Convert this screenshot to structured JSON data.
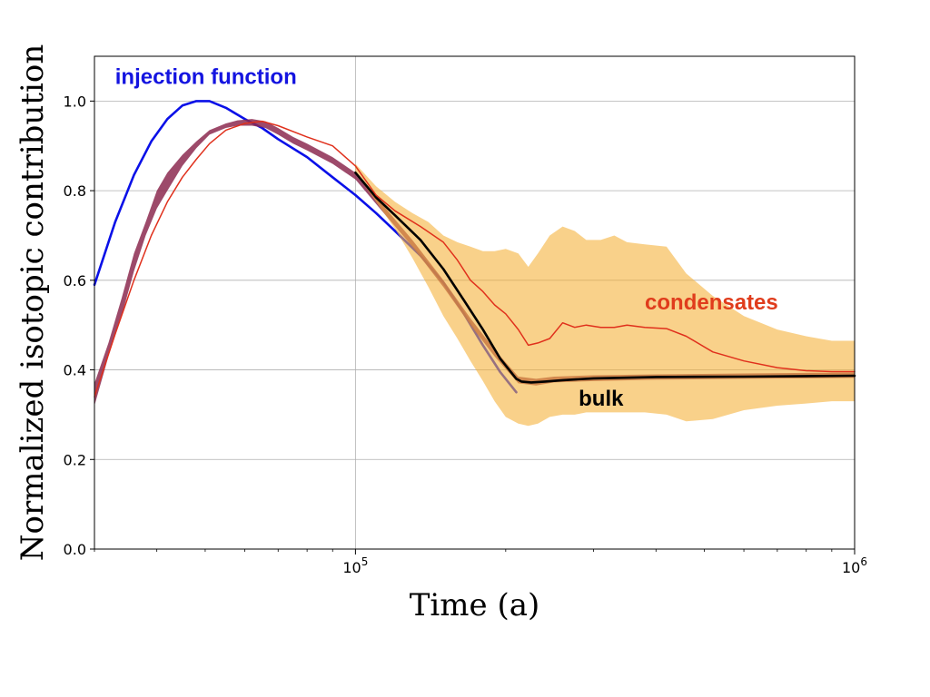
{
  "chart_data": {
    "type": "line",
    "title": "",
    "xlabel": "Time (a)",
    "ylabel": "Normalized isotopic contribution",
    "xscale": "log",
    "xlim": [
      30000,
      1000000
    ],
    "ylim": [
      0,
      1.1
    ],
    "grid": true,
    "yticks": [
      {
        "value": 0.0,
        "label": "0.0"
      },
      {
        "value": 0.2,
        "label": "0.2"
      },
      {
        "value": 0.4,
        "label": "0.4"
      },
      {
        "value": 0.6,
        "label": "0.6"
      },
      {
        "value": 0.8,
        "label": "0.8"
      },
      {
        "value": 1.0,
        "label": "1.0"
      }
    ],
    "xticks": [
      {
        "value": 100000,
        "base": "10",
        "exp": "5"
      },
      {
        "value": 1000000,
        "base": "10",
        "exp": "6"
      }
    ],
    "annotations": [
      {
        "text": "injection function",
        "color": "#1414e0",
        "x": 33000,
        "y": 1.038
      },
      {
        "text": "condensates",
        "color": "#e03c1c",
        "x": 380000,
        "y": 0.535
      },
      {
        "text": "bulk",
        "color": "#000000",
        "x": 280000,
        "y": 0.32
      }
    ],
    "series": [
      {
        "name": "injection function",
        "type": "line",
        "color": "#0a10e8",
        "x": [
          30000,
          33000,
          36000,
          39000,
          42000,
          45000,
          48000,
          51000,
          55000,
          60000,
          65000,
          70000,
          80000,
          90000,
          100000,
          110000,
          120000,
          135000,
          150000,
          165000,
          180000,
          195000,
          210000
        ],
        "y": [
          0.59,
          0.73,
          0.835,
          0.91,
          0.96,
          0.99,
          1.0,
          1.0,
          0.985,
          0.96,
          0.94,
          0.915,
          0.875,
          0.83,
          0.79,
          0.75,
          0.71,
          0.655,
          0.595,
          0.525,
          0.455,
          0.395,
          0.35
        ]
      },
      {
        "name": "bulk band",
        "type": "band",
        "fill": "#8c2a50",
        "opacity": 0.85,
        "x": [
          30000,
          32000,
          34000,
          36000,
          38000,
          40000,
          42000,
          45000,
          48000,
          51000,
          55000,
          58000,
          62000,
          66000,
          70000,
          75000,
          80000,
          90000,
          100000,
          115000,
          130000,
          150000,
          170000,
          190000,
          212000,
          230000,
          250000,
          300000,
          400000,
          600000,
          1000000
        ],
        "lower": [
          0.32,
          0.43,
          0.52,
          0.62,
          0.7,
          0.76,
          0.8,
          0.855,
          0.895,
          0.925,
          0.94,
          0.945,
          0.945,
          0.94,
          0.925,
          0.905,
          0.89,
          0.86,
          0.825,
          0.745,
          0.675,
          0.585,
          0.5,
          0.43,
          0.37,
          0.365,
          0.372,
          0.375,
          0.378,
          0.38,
          0.382
        ],
        "upper": [
          0.37,
          0.46,
          0.56,
          0.66,
          0.73,
          0.8,
          0.84,
          0.88,
          0.91,
          0.935,
          0.95,
          0.957,
          0.96,
          0.955,
          0.94,
          0.92,
          0.905,
          0.875,
          0.84,
          0.76,
          0.69,
          0.6,
          0.515,
          0.445,
          0.385,
          0.38,
          0.385,
          0.388,
          0.39,
          0.392,
          0.394
        ]
      },
      {
        "name": "condensates band",
        "type": "band",
        "fill": "#f5b23c",
        "opacity": 0.6,
        "x": [
          100000,
          110000,
          120000,
          130000,
          140000,
          150000,
          160000,
          170000,
          180000,
          190000,
          200000,
          212000,
          222000,
          232000,
          245000,
          260000,
          275000,
          290000,
          310000,
          330000,
          350000,
          380000,
          420000,
          460000,
          520000,
          600000,
          700000,
          800000,
          900000,
          1000000
        ],
        "lower": [
          0.84,
          0.775,
          0.715,
          0.65,
          0.585,
          0.52,
          0.47,
          0.42,
          0.375,
          0.33,
          0.295,
          0.28,
          0.275,
          0.28,
          0.295,
          0.3,
          0.3,
          0.305,
          0.305,
          0.305,
          0.305,
          0.305,
          0.3,
          0.285,
          0.29,
          0.31,
          0.32,
          0.325,
          0.33,
          0.33
        ],
        "upper": [
          0.86,
          0.81,
          0.775,
          0.75,
          0.73,
          0.7,
          0.685,
          0.675,
          0.665,
          0.665,
          0.67,
          0.66,
          0.63,
          0.66,
          0.7,
          0.72,
          0.71,
          0.69,
          0.69,
          0.7,
          0.685,
          0.68,
          0.675,
          0.615,
          0.565,
          0.52,
          0.49,
          0.475,
          0.465,
          0.465
        ]
      },
      {
        "name": "bulk",
        "type": "line",
        "color": "#000000",
        "x": [
          100000,
          110000,
          120000,
          135000,
          150000,
          165000,
          180000,
          195000,
          210000,
          215000,
          225000,
          240000,
          260000,
          300000,
          400000,
          600000,
          1000000
        ],
        "y": [
          0.84,
          0.785,
          0.745,
          0.69,
          0.625,
          0.555,
          0.49,
          0.425,
          0.38,
          0.374,
          0.372,
          0.374,
          0.377,
          0.381,
          0.384,
          0.385,
          0.387
        ]
      },
      {
        "name": "condensates",
        "type": "line",
        "color": "#e0301c",
        "x": [
          30000,
          33000,
          36000,
          39000,
          42000,
          45000,
          48000,
          51000,
          55000,
          60000,
          65000,
          70000,
          80000,
          90000,
          100000,
          110000,
          120000,
          135000,
          150000,
          160000,
          170000,
          180000,
          190000,
          200000,
          212000,
          222000,
          232000,
          245000,
          260000,
          275000,
          290000,
          310000,
          330000,
          350000,
          380000,
          420000,
          460000,
          520000,
          600000,
          700000,
          800000,
          900000,
          1000000
        ],
        "y": [
          0.34,
          0.48,
          0.6,
          0.7,
          0.775,
          0.83,
          0.87,
          0.905,
          0.935,
          0.95,
          0.955,
          0.945,
          0.92,
          0.9,
          0.855,
          0.79,
          0.755,
          0.72,
          0.685,
          0.645,
          0.6,
          0.575,
          0.545,
          0.525,
          0.49,
          0.455,
          0.46,
          0.47,
          0.505,
          0.495,
          0.5,
          0.495,
          0.495,
          0.5,
          0.495,
          0.492,
          0.475,
          0.44,
          0.42,
          0.405,
          0.398,
          0.396,
          0.396
        ]
      }
    ]
  }
}
